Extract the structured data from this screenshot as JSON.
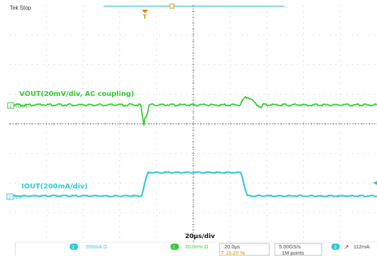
{
  "header": {
    "title": "Tek Stop"
  },
  "colors": {
    "ch1": "#2ecc2e",
    "ch2": "#35c8d8",
    "trigger": "#e08a00",
    "grid": "#9a9a9a"
  },
  "channels": {
    "ch1": {
      "label": "VOUT(20mV/div, AC coupling)",
      "marker": "VOUT"
    },
    "ch2": {
      "label": "IOUT(200mA/div)",
      "marker": "IOUT"
    }
  },
  "timebase": {
    "label": "20µs/div"
  },
  "status_bar": {
    "ch2_scale": "200mA Ω",
    "ch1_scale": "20.0mV Ω",
    "horizontal_scale": "20.0µs",
    "trigger_position": "15.20 %",
    "sample_rate": "5.00GS/s",
    "record_length": "1M points",
    "trigger_channel": "2",
    "trigger_slope": "↗",
    "trigger_level": "112mA",
    "ch1_badge": "1",
    "ch2_badge": "2"
  },
  "icons": {
    "trigger_marker": "trigger-t-icon",
    "ch1_ground": "ch1-ground-marker-icon",
    "ch2_ground": "ch2-ground-marker-icon",
    "trigger_level_arrow": "trigger-level-arrow-icon"
  }
}
